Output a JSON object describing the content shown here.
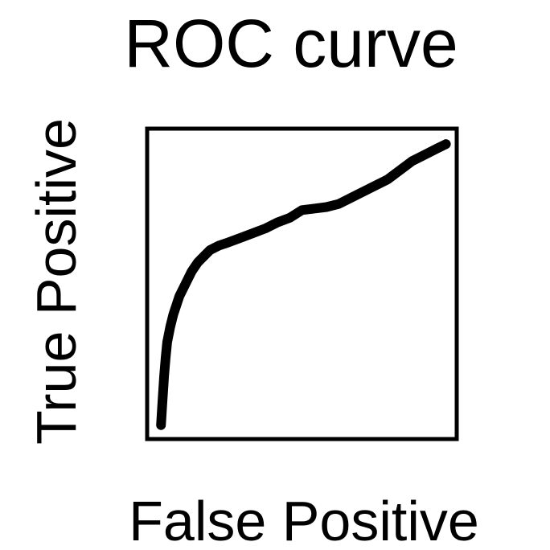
{
  "chart_data": {
    "type": "line",
    "title": "ROC curve",
    "xlabel": "False Positive",
    "ylabel": "True Positive",
    "xlim": [
      0,
      1
    ],
    "ylim": [
      0,
      1
    ],
    "grid": false,
    "legend": "none",
    "series": [
      {
        "color": "#000000",
        "x": [
          0.04,
          0.045,
          0.05,
          0.055,
          0.06,
          0.07,
          0.08,
          0.09,
          0.1,
          0.12,
          0.14,
          0.16,
          0.18,
          0.2,
          0.23,
          0.26,
          0.3,
          0.34,
          0.38,
          0.42,
          0.46,
          0.5,
          0.54,
          0.58,
          0.62,
          0.66,
          0.7,
          0.74,
          0.78,
          0.82,
          0.86,
          0.9,
          0.94,
          0.97
        ],
        "y": [
          0.04,
          0.12,
          0.2,
          0.26,
          0.31,
          0.36,
          0.4,
          0.43,
          0.46,
          0.5,
          0.54,
          0.57,
          0.59,
          0.61,
          0.625,
          0.635,
          0.65,
          0.665,
          0.68,
          0.7,
          0.715,
          0.74,
          0.745,
          0.75,
          0.76,
          0.78,
          0.8,
          0.82,
          0.84,
          0.87,
          0.9,
          0.92,
          0.94,
          0.955
        ]
      }
    ]
  }
}
